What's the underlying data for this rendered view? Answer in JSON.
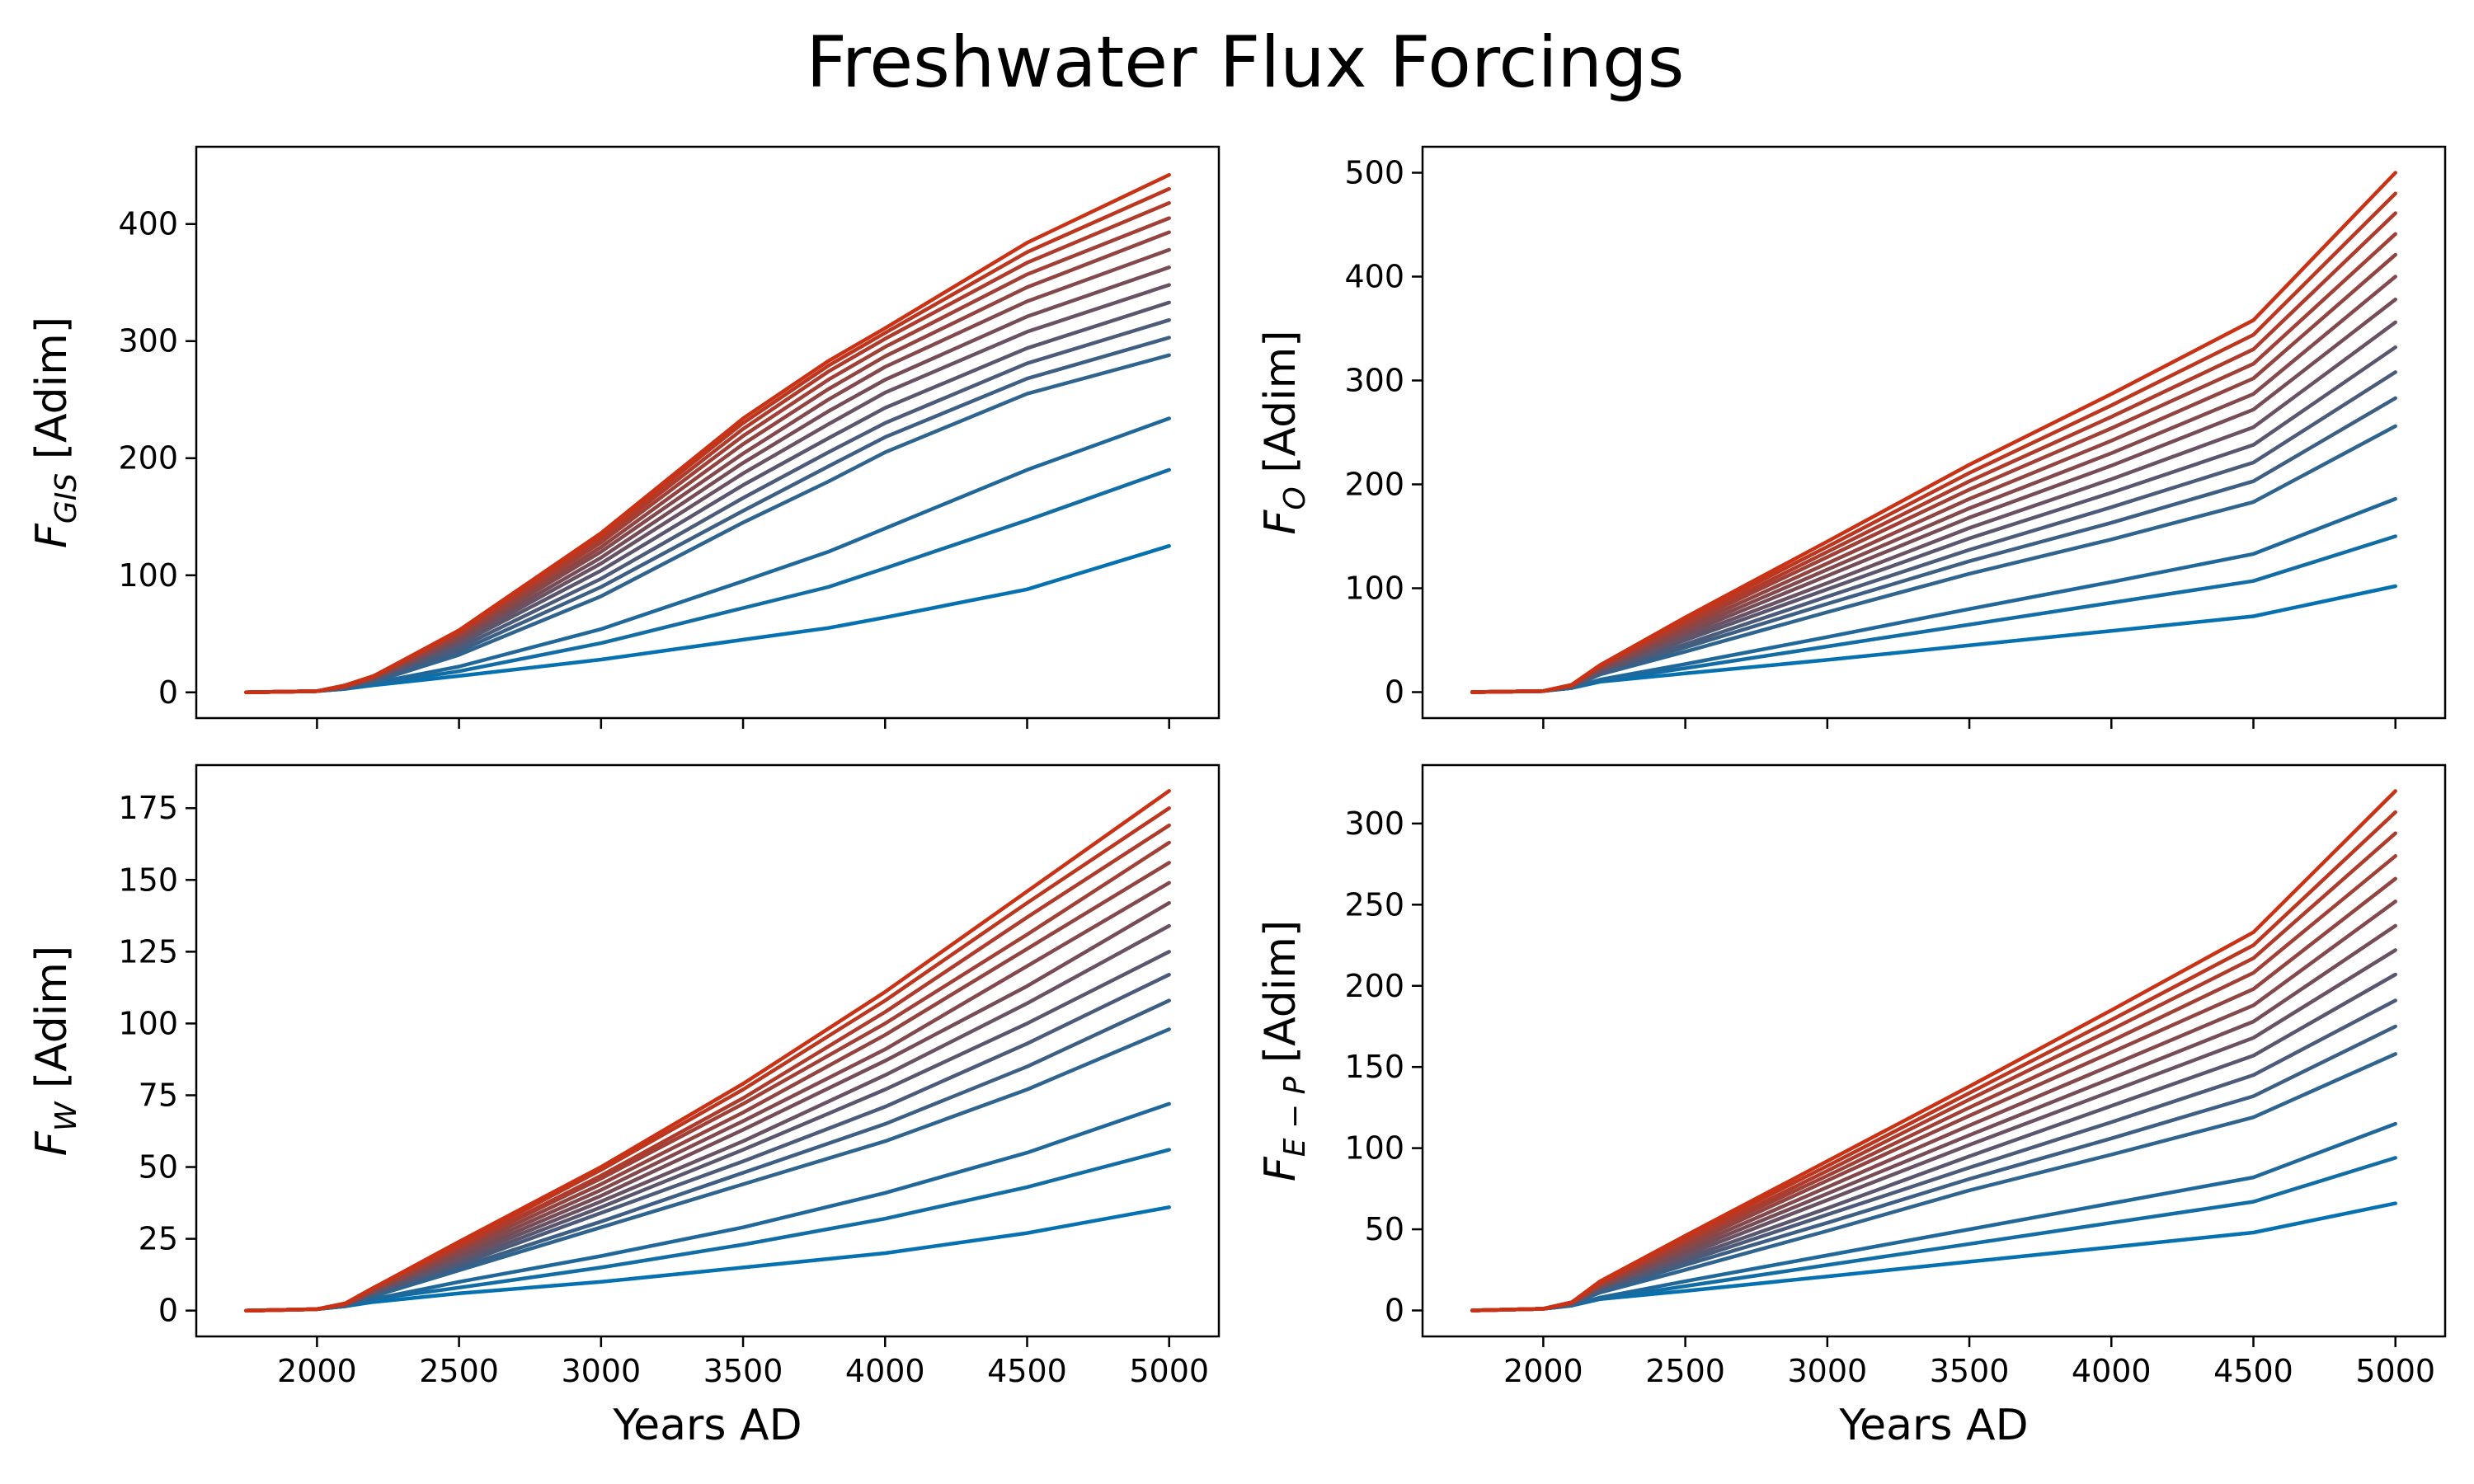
{
  "figure": {
    "title": "Freshwater Flux Forcings",
    "color_low": "#0571b0",
    "color_high": "#ca3215"
  },
  "chart_data": [
    {
      "type": "line",
      "id": "gis",
      "ylabel": {
        "main": "F",
        "sub": "GIS",
        "unit": " [Adim]"
      },
      "xlabel": "",
      "xlim": [
        1575,
        5175
      ],
      "ylim": [
        -22,
        466
      ],
      "xticks": [
        2000,
        2500,
        3000,
        3500,
        4000,
        4500,
        5000
      ],
      "yticks": [
        0,
        100,
        200,
        300,
        400
      ],
      "show_xticklabels": false,
      "series_count": 15,
      "x": [
        1750,
        2000,
        2100,
        2200,
        2500,
        3000,
        3500,
        3800,
        4000,
        4500,
        5000
      ],
      "series": [
        {
          "values": [
            0,
            1,
            3,
            6,
            14,
            28,
            45,
            55,
            64,
            88,
            125
          ]
        },
        {
          "values": [
            0,
            1,
            3,
            7,
            18,
            42,
            72,
            90,
            106,
            147,
            190
          ]
        },
        {
          "values": [
            0,
            1,
            3,
            8,
            22,
            54,
            95,
            120,
            140,
            190,
            234
          ]
        },
        {
          "values": [
            0,
            1,
            4,
            9,
            32,
            82,
            145,
            180,
            205,
            255,
            288
          ]
        },
        {
          "values": [
            0,
            1,
            4,
            10,
            35,
            90,
            155,
            193,
            218,
            268,
            303
          ]
        },
        {
          "values": [
            0,
            1,
            4,
            11,
            38,
            97,
            166,
            205,
            230,
            281,
            318
          ]
        },
        {
          "values": [
            0,
            1,
            4,
            11,
            41,
            104,
            177,
            217,
            243,
            294,
            333
          ]
        },
        {
          "values": [
            0,
            1,
            5,
            12,
            43,
            110,
            187,
            229,
            256,
            308,
            348
          ]
        },
        {
          "values": [
            0,
            1,
            5,
            12,
            45,
            115,
            196,
            240,
            267,
            321,
            363
          ]
        },
        {
          "values": [
            0,
            1,
            5,
            13,
            47,
            120,
            204,
            250,
            278,
            334,
            378
          ]
        },
        {
          "values": [
            0,
            1,
            5,
            13,
            48,
            124,
            212,
            259,
            287,
            346,
            393
          ]
        },
        {
          "values": [
            0,
            1,
            5,
            13,
            50,
            128,
            219,
            267,
            295,
            357,
            405
          ]
        },
        {
          "values": [
            0,
            1,
            5,
            14,
            51,
            131,
            225,
            274,
            302,
            367,
            418
          ]
        },
        {
          "values": [
            0,
            1,
            6,
            14,
            52,
            134,
            230,
            279,
            307,
            376,
            430
          ]
        },
        {
          "values": [
            0,
            1,
            6,
            14,
            53,
            136,
            234,
            283,
            311,
            384,
            442
          ]
        }
      ]
    },
    {
      "type": "line",
      "id": "o",
      "ylabel": {
        "main": "F",
        "sub": "O",
        "unit": " [Adim]"
      },
      "xlabel": "",
      "xlim": [
        1575,
        5175
      ],
      "ylim": [
        -25,
        525
      ],
      "xticks": [
        2000,
        2500,
        3000,
        3500,
        4000,
        4500,
        5000
      ],
      "yticks": [
        0,
        100,
        200,
        300,
        400,
        500
      ],
      "show_xticklabels": false,
      "series_count": 15,
      "x": [
        1750,
        2000,
        2100,
        2200,
        2500,
        3000,
        3500,
        4000,
        4500,
        5000
      ],
      "series": [
        {
          "values": [
            0,
            1,
            4,
            10,
            18,
            31,
            45,
            59,
            73,
            102
          ]
        },
        {
          "values": [
            0,
            1,
            4,
            11,
            23,
            44,
            65,
            86,
            107,
            150
          ]
        },
        {
          "values": [
            0,
            1,
            4,
            12,
            27,
            53,
            80,
            106,
            133,
            186
          ]
        },
        {
          "values": [
            0,
            1,
            5,
            17,
            39,
            77,
            114,
            147,
            183,
            256
          ]
        },
        {
          "values": [
            0,
            1,
            5,
            18,
            43,
            85,
            126,
            163,
            203,
            283
          ]
        },
        {
          "values": [
            0,
            1,
            5,
            19,
            46,
            92,
            137,
            178,
            221,
            308
          ]
        },
        {
          "values": [
            0,
            1,
            5,
            20,
            50,
            99,
            148,
            192,
            238,
            332
          ]
        },
        {
          "values": [
            0,
            1,
            6,
            21,
            53,
            105,
            158,
            205,
            255,
            356
          ]
        },
        {
          "values": [
            0,
            1,
            6,
            22,
            56,
            112,
            168,
            218,
            272,
            378
          ]
        },
        {
          "values": [
            0,
            1,
            6,
            23,
            59,
            118,
            177,
            230,
            287,
            400
          ]
        },
        {
          "values": [
            0,
            1,
            6,
            24,
            62,
            124,
            186,
            242,
            302,
            421
          ]
        },
        {
          "values": [
            0,
            1,
            6,
            25,
            65,
            130,
            195,
            254,
            316,
            441
          ]
        },
        {
          "values": [
            0,
            1,
            7,
            25,
            67,
            135,
            203,
            265,
            330,
            461
          ]
        },
        {
          "values": [
            0,
            1,
            7,
            26,
            70,
            140,
            211,
            276,
            344,
            480
          ]
        },
        {
          "values": [
            0,
            1,
            7,
            26,
            72,
            145,
            219,
            287,
            358,
            500
          ]
        }
      ]
    },
    {
      "type": "line",
      "id": "w",
      "ylabel": {
        "main": "F",
        "sub": "W",
        "unit": " [Adim]"
      },
      "xlabel": "Years AD",
      "xlim": [
        1575,
        5175
      ],
      "ylim": [
        -9,
        190
      ],
      "xticks": [
        2000,
        2500,
        3000,
        3500,
        4000,
        4500,
        5000
      ],
      "yticks": [
        0,
        25,
        50,
        75,
        100,
        125,
        150,
        175
      ],
      "show_xticklabels": true,
      "series_count": 15,
      "x": [
        1750,
        2000,
        2100,
        2200,
        2500,
        3000,
        3500,
        4000,
        4500,
        5000
      ],
      "series": [
        {
          "values": [
            0,
            0.5,
            1.5,
            3,
            6,
            10,
            15,
            20,
            27,
            36
          ]
        },
        {
          "values": [
            0,
            0.5,
            1.5,
            4,
            8,
            15,
            23,
            32,
            43,
            56
          ]
        },
        {
          "values": [
            0,
            0.5,
            1.5,
            4,
            10,
            19,
            29,
            41,
            55,
            72
          ]
        },
        {
          "values": [
            0,
            0.5,
            2,
            5,
            14,
            29,
            44,
            59,
            77,
            98
          ]
        },
        {
          "values": [
            0,
            0.5,
            2,
            6,
            15,
            31,
            48,
            65,
            85,
            108
          ]
        },
        {
          "values": [
            0,
            0.5,
            2,
            6,
            16,
            34,
            52,
            71,
            93,
            117
          ]
        },
        {
          "values": [
            0,
            0.5,
            2,
            6,
            17,
            36,
            56,
            77,
            100,
            125
          ]
        },
        {
          "values": [
            0,
            0.5,
            2,
            7,
            18,
            38,
            59,
            82,
            107,
            134
          ]
        },
        {
          "values": [
            0,
            0.5,
            2,
            7,
            19,
            40,
            63,
            87,
            113,
            142
          ]
        },
        {
          "values": [
            0,
            0.5,
            2,
            7,
            20,
            42,
            66,
            91,
            120,
            149
          ]
        },
        {
          "values": [
            0,
            0.5,
            2,
            7,
            21,
            44,
            69,
            96,
            126,
            156
          ]
        },
        {
          "values": [
            0,
            0.5,
            2.5,
            8,
            22,
            46,
            72,
            100,
            131,
            163
          ]
        },
        {
          "values": [
            0,
            0.5,
            2.5,
            8,
            22,
            47,
            74,
            104,
            137,
            169
          ]
        },
        {
          "values": [
            0,
            0.5,
            2.5,
            8,
            23,
            49,
            77,
            108,
            142,
            175
          ]
        },
        {
          "values": [
            0,
            0.5,
            2.5,
            8,
            24,
            50,
            79,
            111,
            146,
            181
          ]
        }
      ]
    },
    {
      "type": "line",
      "id": "ep",
      "ylabel": {
        "main": "F",
        "sub": "E − P",
        "unit": " [Adim]"
      },
      "xlabel": "Years AD",
      "xlim": [
        1575,
        5175
      ],
      "ylim": [
        -16,
        336
      ],
      "xticks": [
        2000,
        2500,
        3000,
        3500,
        4000,
        4500,
        5000
      ],
      "yticks": [
        0,
        50,
        100,
        150,
        200,
        250,
        300
      ],
      "show_xticklabels": true,
      "series_count": 15,
      "x": [
        1750,
        2000,
        2100,
        2200,
        2500,
        3000,
        3500,
        4000,
        4500,
        5000
      ],
      "series": [
        {
          "values": [
            0,
            1,
            3,
            7,
            12,
            21,
            30,
            39,
            48,
            66
          ]
        },
        {
          "values": [
            0,
            1,
            3,
            7,
            15,
            28,
            41,
            54,
            67,
            94
          ]
        },
        {
          "values": [
            0,
            1,
            3,
            8,
            18,
            34,
            50,
            66,
            82,
            115
          ]
        },
        {
          "values": [
            0,
            1,
            4,
            11,
            25,
            49,
            74,
            96,
            119,
            158
          ]
        },
        {
          "values": [
            0,
            1,
            4,
            12,
            28,
            54,
            81,
            106,
            132,
            175
          ]
        },
        {
          "values": [
            0,
            1,
            4,
            13,
            30,
            59,
            88,
            116,
            145,
            191
          ]
        },
        {
          "values": [
            0,
            1,
            4,
            14,
            32,
            63,
            95,
            126,
            157,
            207
          ]
        },
        {
          "values": [
            0,
            1,
            4,
            14,
            34,
            68,
            102,
            135,
            168,
            222
          ]
        },
        {
          "values": [
            0,
            1,
            4,
            15,
            36,
            72,
            108,
            143,
            178,
            237
          ]
        },
        {
          "values": [
            0,
            1,
            5,
            15,
            38,
            76,
            114,
            151,
            188,
            252
          ]
        },
        {
          "values": [
            0,
            1,
            5,
            16,
            40,
            80,
            120,
            159,
            198,
            266
          ]
        },
        {
          "values": [
            0,
            1,
            5,
            16,
            42,
            83,
            125,
            166,
            208,
            280
          ]
        },
        {
          "values": [
            0,
            1,
            5,
            17,
            43,
            86,
            130,
            173,
            217,
            294
          ]
        },
        {
          "values": [
            0,
            1,
            5,
            17,
            45,
            89,
            134,
            179,
            225,
            307
          ]
        },
        {
          "values": [
            0,
            1,
            5,
            18,
            46,
            92,
            138,
            185,
            233,
            320
          ]
        }
      ]
    }
  ]
}
